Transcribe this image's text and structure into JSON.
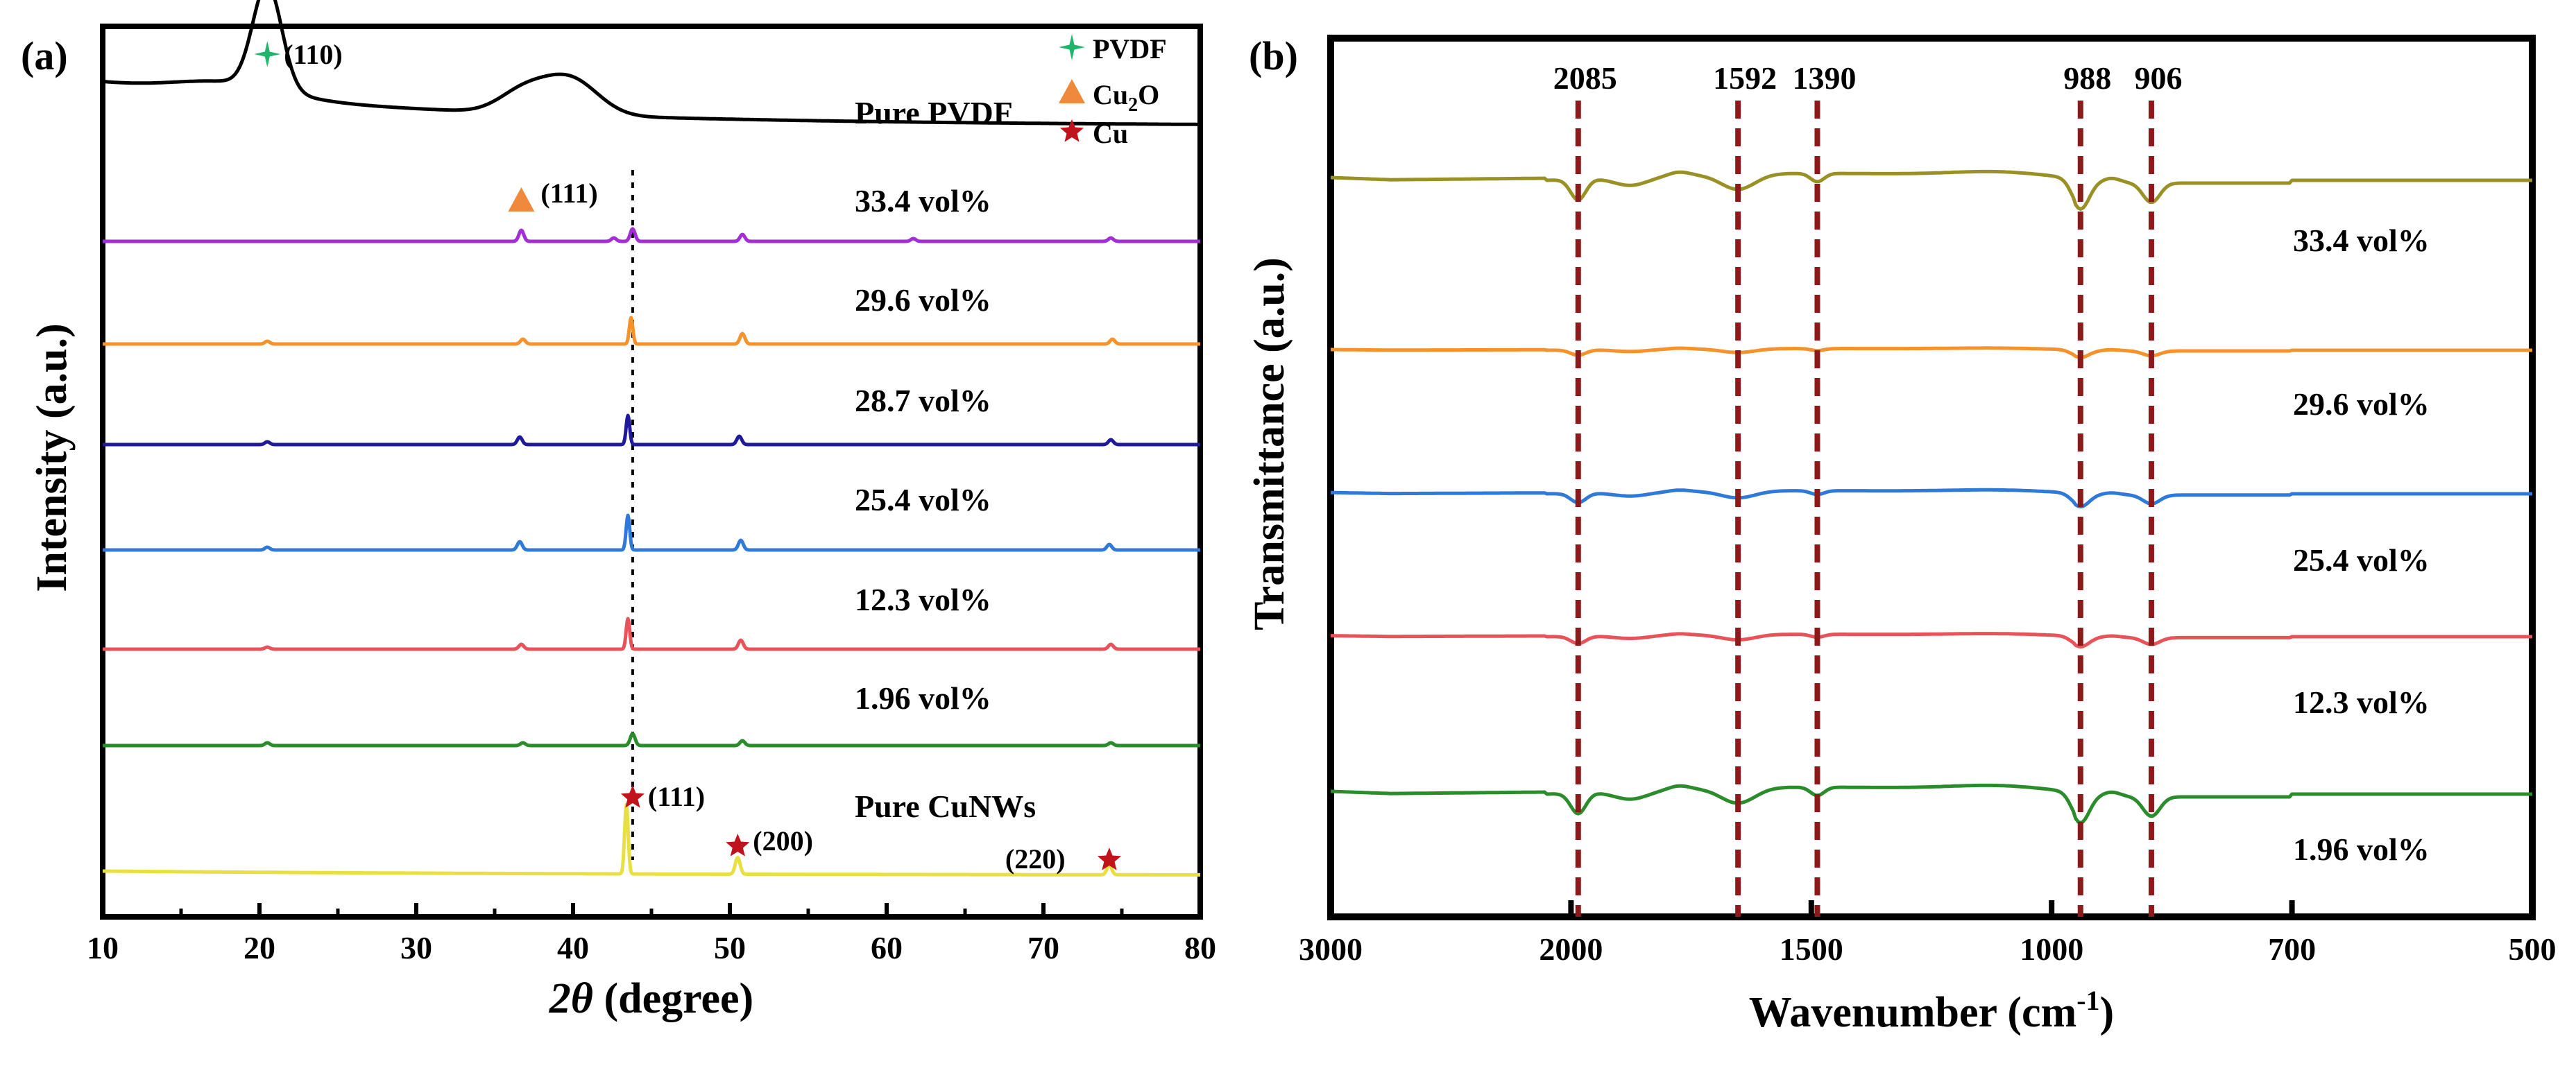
{
  "chart_data": [
    {
      "panel": "(a)",
      "type": "line",
      "xlabel_italic": "2θ",
      "xlabel_rest": " (degree)",
      "ylabel": "Intensity (a.u.)",
      "xlim": [
        10,
        80
      ],
      "x_ticks": [
        "10",
        "20",
        "30",
        "40",
        "50",
        "60",
        "70",
        "80"
      ],
      "x_tick_values": [
        10,
        20,
        30,
        40,
        50,
        60,
        70,
        80
      ],
      "reference_line_x": 43.8,
      "legend": [
        {
          "symbol": "plus-star",
          "label": "PVDF",
          "color": "#1fb56a"
        },
        {
          "symbol": "triangle",
          "label": "Cu",
          "sub": "2",
          "suffix": "O",
          "color": "#ef8a3c"
        },
        {
          "symbol": "star",
          "label": "Cu",
          "color": "#c0131b"
        }
      ],
      "series": [
        {
          "name": "Pure PVDF",
          "label": "Pure PVDF",
          "color": "#000000",
          "baseline": 1.0,
          "type": "pvdf"
        },
        {
          "name": "33.4 vol%",
          "label": "33.4 vol%",
          "color": "#a22ed6",
          "baseline": 0.0,
          "peaks": [
            [
              36.7,
              16
            ],
            [
              42.6,
              5
            ],
            [
              43.8,
              18
            ],
            [
              50.8,
              10
            ],
            [
              61.7,
              4
            ],
            [
              74.3,
              5
            ]
          ]
        },
        {
          "name": "29.6 vol%",
          "label": "29.6 vol%",
          "color": "#f5922b",
          "baseline": 0.0,
          "peaks": [
            [
              20.5,
              4
            ],
            [
              36.8,
              7
            ],
            [
              43.7,
              38
            ],
            [
              50.8,
              15
            ],
            [
              74.4,
              7
            ]
          ]
        },
        {
          "name": "28.7 vol%",
          "label": "28.7 vol%",
          "color": "#1f1a9c",
          "baseline": 0.0,
          "peaks": [
            [
              20.5,
              4
            ],
            [
              36.6,
              11
            ],
            [
              43.5,
              42
            ],
            [
              50.6,
              12
            ],
            [
              74.3,
              7
            ]
          ]
        },
        {
          "name": "25.4 vol%",
          "label": "25.4 vol%",
          "color": "#2f7ad8",
          "baseline": 0.0,
          "peaks": [
            [
              20.5,
              4
            ],
            [
              36.6,
              12
            ],
            [
              43.5,
              50
            ],
            [
              50.7,
              14
            ],
            [
              74.2,
              8
            ]
          ]
        },
        {
          "name": "12.3 vol%",
          "label": "12.3 vol%",
          "color": "#e8535a",
          "baseline": 0.0,
          "peaks": [
            [
              20.5,
              3
            ],
            [
              36.7,
              7
            ],
            [
              43.5,
              44
            ],
            [
              50.7,
              13
            ],
            [
              74.3,
              7
            ]
          ]
        },
        {
          "name": "1.96 vol%",
          "label": "1.96 vol%",
          "color": "#2a8c2a",
          "baseline": 0.0,
          "peaks": [
            [
              20.5,
              4
            ],
            [
              36.8,
              4
            ],
            [
              43.8,
              17
            ],
            [
              50.8,
              7
            ],
            [
              74.3,
              4
            ]
          ]
        },
        {
          "name": "Pure CuNWs",
          "label": "Pure CuNWs",
          "color": "#e8e043",
          "baseline": 0.0,
          "type": "cunws",
          "peaks": [
            [
              43.4,
              100
            ],
            [
              50.5,
              24
            ],
            [
              74.2,
              14
            ]
          ]
        }
      ],
      "annotations": [
        {
          "text": "(110)",
          "x": 20.5,
          "marker": "plus-star"
        },
        {
          "text": "(111)",
          "x": 36.7,
          "marker": "triangle"
        },
        {
          "text": "(111)",
          "x": 43.8,
          "marker": "star"
        },
        {
          "text": "(200)",
          "x": 50.5,
          "marker": "star"
        },
        {
          "text": "(220)",
          "x": 74.2,
          "marker": "star"
        }
      ]
    },
    {
      "panel": "(b)",
      "type": "line",
      "xlabel": "Wavenumber (cm",
      "xlabel_sup": "-1",
      "xlabel_close": ")",
      "ylabel": "Transmittance (a.u.)",
      "x_ticks": [
        "3000",
        "2000",
        "1500",
        "1000",
        "700",
        "500"
      ],
      "x_tick_positions": [
        0,
        0.2,
        0.4,
        0.6,
        0.8,
        1.0
      ],
      "reference_lines": [
        {
          "label": "2085",
          "f": 0.206
        },
        {
          "label": "1592",
          "f": 0.339
        },
        {
          "label": "1390",
          "f": 0.405
        },
        {
          "label": "988",
          "f": 0.624
        },
        {
          "label": "906",
          "f": 0.683
        }
      ],
      "series": [
        {
          "name": "33.4 vol%",
          "label": "33.4 vol%",
          "color": "#9a9126",
          "scale": 1.0
        },
        {
          "name": "29.6 vol%",
          "label": "29.6 vol%",
          "color": "#f5922b",
          "scale": 0.25
        },
        {
          "name": "25.4 vol%",
          "label": "25.4 vol%",
          "color": "#2f7ad8",
          "scale": 0.45
        },
        {
          "name": "12.3 vol%",
          "label": "12.3 vol%",
          "color": "#e8535a",
          "scale": 0.35
        },
        {
          "name": "1.96 vol%",
          "label": "1.96 vol%",
          "color": "#2a8c2a",
          "scale": 1.0
        }
      ]
    }
  ]
}
